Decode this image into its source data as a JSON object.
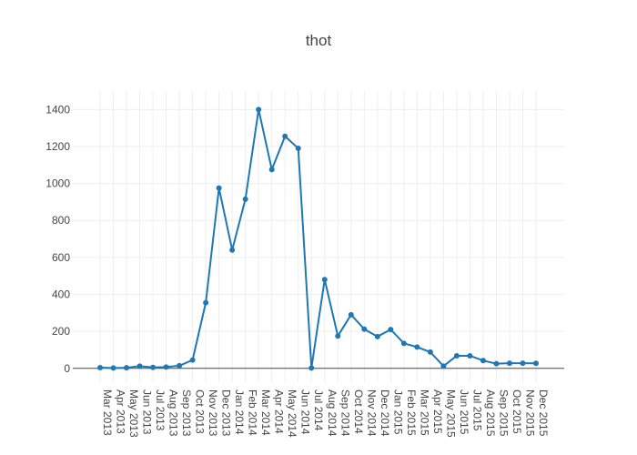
{
  "chart_data": {
    "type": "line",
    "title": "thot",
    "xlabel": "",
    "ylabel": "",
    "grid": true,
    "ylim": [
      -75,
      1500
    ],
    "yticks": [
      0,
      200,
      400,
      600,
      800,
      1000,
      1200,
      1400
    ],
    "categories": [
      "Mar 2013",
      "Apr 2013",
      "May 2013",
      "Jun 2013",
      "Jul 2013",
      "Aug 2013",
      "Sep 2013",
      "Oct 2013",
      "Nov 2013",
      "Dec 2013",
      "Jan 2014",
      "Feb 2014",
      "Mar 2014",
      "Apr 2014",
      "May 2014",
      "Jun 2014",
      "Jul 2014",
      "Aug 2014",
      "Sep 2014",
      "Oct 2014",
      "Nov 2014",
      "Dec 2014",
      "Jan 2015",
      "Feb 2015",
      "Mar 2015",
      "Apr 2015",
      "May 2015",
      "Jun 2015",
      "Jul 2015",
      "Aug 2015",
      "Sep 2015",
      "Oct 2015",
      "Nov 2015",
      "Dec 2015"
    ],
    "series": [
      {
        "color": "#1f77b4",
        "values": [
          4,
          2,
          3,
          12,
          5,
          7,
          14,
          45,
          355,
          975,
          640,
          915,
          1400,
          1075,
          1255,
          1190,
          2,
          480,
          175,
          290,
          212,
          172,
          210,
          135,
          115,
          88,
          12,
          68,
          68,
          42,
          25,
          28,
          28,
          27
        ]
      }
    ]
  }
}
